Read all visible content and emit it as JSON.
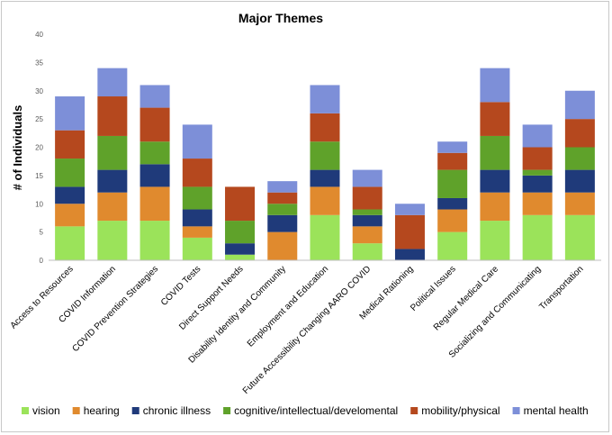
{
  "chart_data": {
    "type": "bar",
    "stacked": true,
    "title": "Major Themes",
    "xlabel": "",
    "ylabel": "# of Individuals",
    "ylim": [
      0,
      40
    ],
    "yticks": [
      0,
      5,
      10,
      15,
      20,
      25,
      30,
      35,
      40
    ],
    "grid": false,
    "legend_position": "bottom",
    "categories": [
      "Access to Resources",
      "COVID Information",
      "COVID Prevention Strategies",
      "COVID Tests",
      "Direct Support Needs",
      "Disability Identity and Community",
      "Employment and Education",
      "Future Accessibility Changing AARO COVID",
      "Medical Rationing",
      "Political Issues",
      "Regular Medical Care",
      "Socializing and Communicating",
      "Transportation"
    ],
    "series": [
      {
        "name": "vision",
        "color": "#9be35a",
        "values": [
          6,
          7,
          7,
          4,
          1,
          0,
          8,
          3,
          0,
          5,
          7,
          8,
          8
        ]
      },
      {
        "name": "hearing",
        "color": "#e08a2e",
        "values": [
          4,
          5,
          6,
          2,
          0,
          5,
          5,
          3,
          0,
          4,
          5,
          4,
          4
        ]
      },
      {
        "name": "chronic illness",
        "color": "#1f3a7a",
        "values": [
          3,
          4,
          4,
          3,
          2,
          3,
          3,
          2,
          2,
          2,
          4,
          3,
          4
        ]
      },
      {
        "name": "cognitive/intellectual/develomental",
        "color": "#5fa22a",
        "values": [
          5,
          6,
          4,
          4,
          4,
          2,
          5,
          1,
          0,
          5,
          6,
          1,
          4
        ]
      },
      {
        "name": "mobility/physical",
        "color": "#b5481e",
        "values": [
          5,
          7,
          6,
          5,
          6,
          2,
          5,
          4,
          6,
          3,
          6,
          4,
          5
        ]
      },
      {
        "name": "mental health",
        "color": "#7d8fd8",
        "values": [
          6,
          5,
          4,
          6,
          0,
          2,
          5,
          3,
          2,
          2,
          6,
          4,
          5
        ]
      }
    ]
  }
}
